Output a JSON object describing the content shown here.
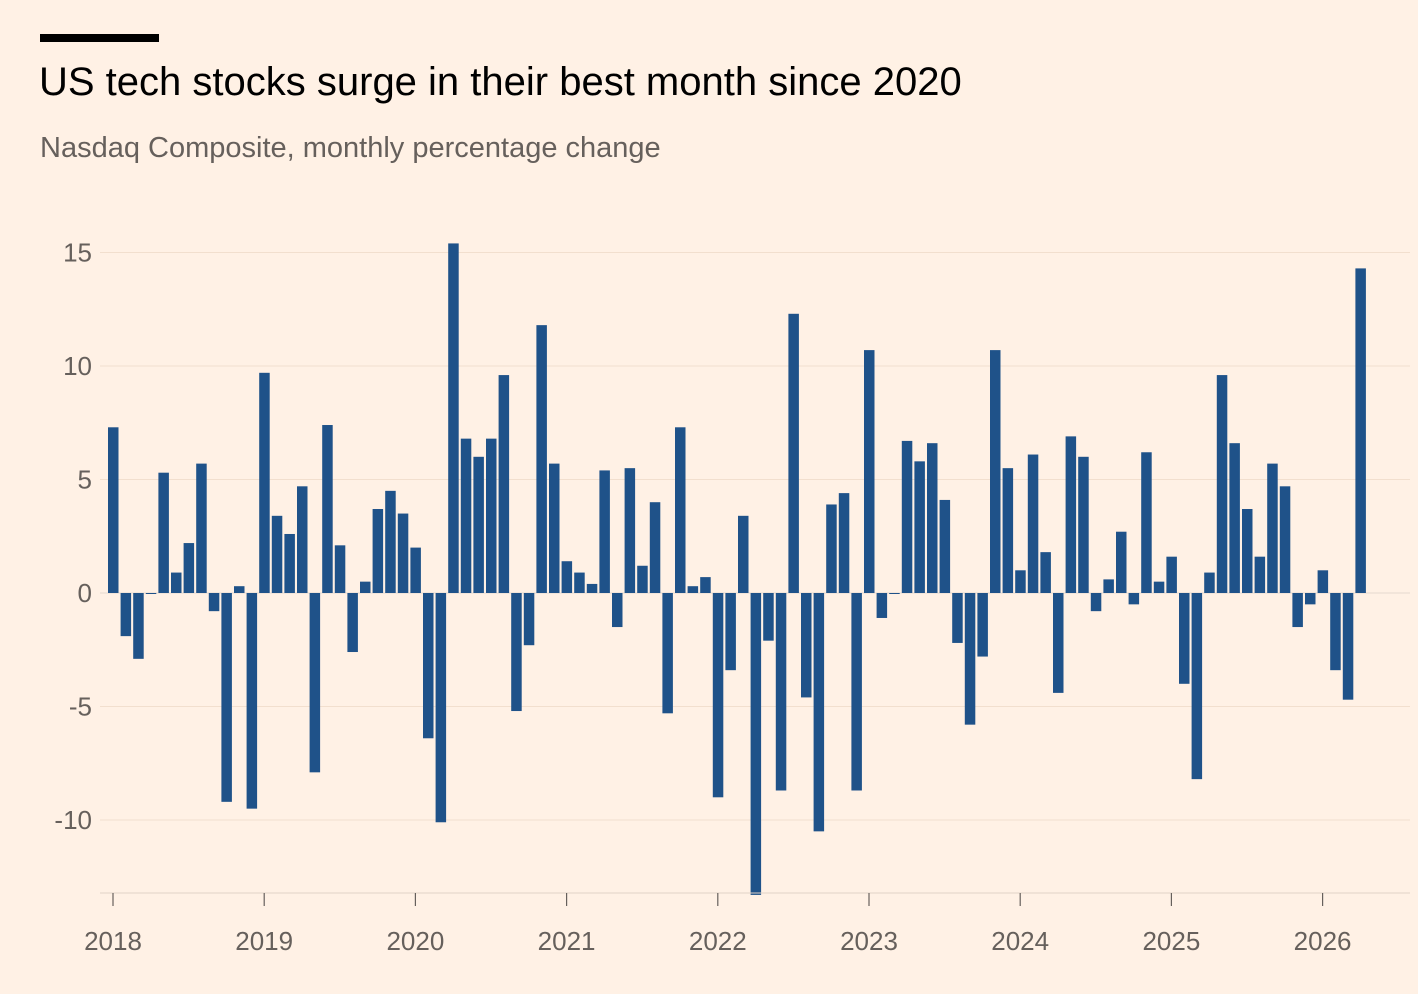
{
  "header": {
    "title": "US tech stocks surge in their best month since 2020",
    "subtitle": "Nasdaq Composite, monthly percentage change"
  },
  "chart_data": {
    "type": "bar",
    "title": "US tech stocks surge in their best month since 2020",
    "subtitle": "Nasdaq Composite, monthly percentage change",
    "xlabel": "",
    "ylabel": "",
    "x_start": "2018-01",
    "x_ticks": [
      "2018",
      "2019",
      "2020",
      "2021",
      "2022",
      "2023",
      "2024",
      "2025",
      "2026"
    ],
    "y_ticks": [
      15,
      10,
      5,
      0,
      -5,
      -10
    ],
    "ylim": [
      -13.3,
      15.5
    ],
    "grid": true,
    "bar_color": "#1f5289",
    "series": [
      {
        "values": [
          7.3,
          -1.9,
          -2.9,
          0.0,
          5.3,
          0.9,
          2.2,
          5.7,
          -0.8,
          -9.2,
          0.3,
          -9.5,
          9.7,
          3.4,
          2.6,
          4.7,
          -7.9,
          7.4,
          2.1,
          -2.6,
          0.5,
          3.7,
          4.5,
          3.5,
          2.0,
          -6.4,
          -10.1,
          15.4,
          6.8,
          6.0,
          6.8,
          9.6,
          -5.2,
          -2.3,
          11.8,
          5.7,
          1.4,
          0.9,
          0.4,
          5.4,
          -1.5,
          5.5,
          1.2,
          4.0,
          -5.3,
          7.3,
          0.3,
          0.7,
          -9.0,
          -3.4,
          3.4,
          -13.3,
          -2.1,
          -8.7,
          12.3,
          -4.6,
          -10.5,
          3.9,
          4.4,
          -8.7,
          10.7,
          -1.1,
          0.0,
          6.7,
          5.8,
          6.6,
          4.1,
          -2.2,
          -5.8,
          -2.8,
          10.7,
          5.5,
          1.0,
          6.1,
          1.8,
          -4.4,
          6.9,
          6.0,
          -0.8,
          0.6,
          2.7,
          -0.5,
          6.2,
          0.5,
          1.6,
          -4.0,
          -8.2,
          0.9,
          9.6,
          6.6,
          3.7,
          1.6,
          5.7,
          4.7,
          -1.5,
          -0.5,
          1.0,
          -3.4,
          -4.7,
          14.3
        ]
      }
    ]
  }
}
